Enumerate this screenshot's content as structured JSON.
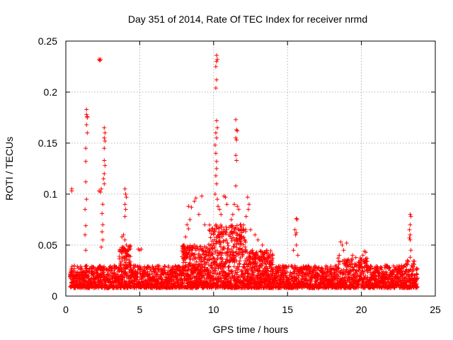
{
  "chart_data": {
    "type": "scatter",
    "title": "Day 351 of 2014, Rate Of TEC Index for receiver nrmd",
    "xlabel": "GPS time / hours",
    "ylabel": "ROTI / TECUs",
    "xlim": [
      0,
      25
    ],
    "ylim": [
      0,
      0.25
    ],
    "x_ticks": [
      0,
      5,
      10,
      15,
      20,
      25
    ],
    "y_ticks": [
      0,
      0.05,
      0.1,
      0.15,
      0.2,
      0.25
    ],
    "x_tick_labels": [
      "0",
      "5",
      "10",
      "15",
      "20",
      "25"
    ],
    "y_tick_labels": [
      "0",
      "0.05",
      "0.1",
      "0.15",
      "0.2",
      "0.25"
    ],
    "grid": true,
    "series": [
      {
        "name": "ROTI",
        "color": "#ff0000",
        "marker": "plus",
        "points": [
          [
            0.4,
            0.105
          ],
          [
            0.4,
            0.103
          ],
          [
            0.5,
            0.025
          ],
          [
            0.6,
            0.02
          ],
          [
            1.4,
            0.183
          ],
          [
            1.4,
            0.178
          ],
          [
            1.45,
            0.176
          ],
          [
            1.45,
            0.175
          ],
          [
            1.4,
            0.168
          ],
          [
            1.45,
            0.16
          ],
          [
            1.35,
            0.145
          ],
          [
            1.35,
            0.132
          ],
          [
            1.35,
            0.112
          ],
          [
            1.4,
            0.095
          ],
          [
            1.3,
            0.085
          ],
          [
            1.35,
            0.069
          ],
          [
            1.3,
            0.06
          ],
          [
            1.35,
            0.045
          ],
          [
            2.25,
            0.232
          ],
          [
            2.3,
            0.231
          ],
          [
            2.35,
            0.232
          ],
          [
            2.25,
            0.103
          ],
          [
            2.35,
            0.102
          ],
          [
            2.4,
            0.105
          ],
          [
            2.6,
            0.165
          ],
          [
            2.65,
            0.16
          ],
          [
            2.6,
            0.155
          ],
          [
            2.65,
            0.152
          ],
          [
            2.6,
            0.145
          ],
          [
            2.6,
            0.133
          ],
          [
            2.65,
            0.128
          ],
          [
            2.6,
            0.12
          ],
          [
            2.55,
            0.115
          ],
          [
            2.6,
            0.11
          ],
          [
            2.5,
            0.09
          ],
          [
            2.45,
            0.081
          ],
          [
            2.5,
            0.07
          ],
          [
            2.45,
            0.063
          ],
          [
            2.5,
            0.055
          ],
          [
            2.4,
            0.048
          ],
          [
            4.0,
            0.105
          ],
          [
            4.05,
            0.1
          ],
          [
            4.1,
            0.097
          ],
          [
            4.0,
            0.09
          ],
          [
            4.05,
            0.085
          ],
          [
            4.0,
            0.078
          ],
          [
            3.9,
            0.06
          ],
          [
            4.0,
            0.055
          ],
          [
            4.1,
            0.05
          ],
          [
            3.8,
            0.058
          ],
          [
            4.2,
            0.045
          ],
          [
            4.15,
            0.04
          ],
          [
            4.9,
            0.046
          ],
          [
            5.0,
            0.045
          ],
          [
            5.1,
            0.046
          ],
          [
            8.3,
            0.088
          ],
          [
            8.5,
            0.087
          ],
          [
            8.4,
            0.075
          ],
          [
            8.2,
            0.07
          ],
          [
            8.3,
            0.066
          ],
          [
            8.1,
            0.058
          ],
          [
            8.0,
            0.05
          ],
          [
            8.7,
            0.093
          ],
          [
            8.8,
            0.096
          ],
          [
            9.2,
            0.098
          ],
          [
            9.0,
            0.08
          ],
          [
            9.4,
            0.07
          ],
          [
            10.2,
            0.236
          ],
          [
            10.25,
            0.232
          ],
          [
            10.2,
            0.23
          ],
          [
            10.15,
            0.225
          ],
          [
            10.2,
            0.212
          ],
          [
            10.15,
            0.204
          ],
          [
            10.2,
            0.172
          ],
          [
            10.25,
            0.165
          ],
          [
            10.15,
            0.16
          ],
          [
            10.2,
            0.155
          ],
          [
            10.1,
            0.148
          ],
          [
            10.15,
            0.14
          ],
          [
            10.2,
            0.132
          ],
          [
            10.2,
            0.125
          ],
          [
            10.15,
            0.118
          ],
          [
            10.2,
            0.11
          ],
          [
            10.1,
            0.1
          ],
          [
            10.25,
            0.095
          ],
          [
            10.3,
            0.088
          ],
          [
            10.4,
            0.085
          ],
          [
            10.5,
            0.08
          ],
          [
            10.7,
            0.098
          ],
          [
            10.8,
            0.097
          ],
          [
            10.9,
            0.09
          ],
          [
            11.5,
            0.173
          ],
          [
            11.55,
            0.163
          ],
          [
            11.6,
            0.162
          ],
          [
            11.5,
            0.155
          ],
          [
            11.55,
            0.153
          ],
          [
            11.5,
            0.138
          ],
          [
            11.55,
            0.133
          ],
          [
            11.5,
            0.108
          ],
          [
            11.4,
            0.09
          ],
          [
            11.6,
            0.088
          ],
          [
            11.7,
            0.085
          ],
          [
            11.3,
            0.08
          ],
          [
            11.2,
            0.075
          ],
          [
            11.8,
            0.07
          ],
          [
            12.3,
            0.097
          ],
          [
            12.4,
            0.09
          ],
          [
            12.35,
            0.085
          ],
          [
            12.2,
            0.078
          ],
          [
            12.5,
            0.065
          ],
          [
            12.8,
            0.06
          ],
          [
            13.0,
            0.055
          ],
          [
            13.3,
            0.05
          ],
          [
            13.6,
            0.045
          ],
          [
            14.0,
            0.04
          ],
          [
            15.6,
            0.076
          ],
          [
            15.65,
            0.075
          ],
          [
            15.5,
            0.065
          ],
          [
            15.6,
            0.062
          ],
          [
            15.55,
            0.06
          ],
          [
            15.6,
            0.05
          ],
          [
            15.4,
            0.045
          ],
          [
            15.7,
            0.04
          ],
          [
            18.6,
            0.053
          ],
          [
            18.7,
            0.05
          ],
          [
            18.8,
            0.045
          ],
          [
            19.0,
            0.052
          ],
          [
            18.5,
            0.04
          ],
          [
            20.2,
            0.044
          ],
          [
            20.3,
            0.043
          ],
          [
            20.1,
            0.04
          ],
          [
            19.4,
            0.04
          ],
          [
            23.3,
            0.08
          ],
          [
            23.35,
            0.078
          ],
          [
            23.3,
            0.07
          ],
          [
            23.25,
            0.065
          ],
          [
            23.3,
            0.06
          ],
          [
            23.25,
            0.057
          ],
          [
            23.3,
            0.055
          ],
          [
            23.35,
            0.045
          ],
          [
            23.3,
            0.038
          ]
        ]
      }
    ],
    "dense_band": {
      "note": "Dense cluster of ROTI values between approximately 0.01 and 0.03 TECU across 0.3–23.8 h, rising to about 0.07 between 9.8 and 12 h",
      "x_range": [
        0.3,
        23.8
      ],
      "baseline_low": 0.008,
      "baseline_high": 0.03,
      "enhanced_segments": [
        {
          "x_range": [
            3.6,
            4.4
          ],
          "high": 0.05
        },
        {
          "x_range": [
            7.8,
            9.6
          ],
          "high": 0.05
        },
        {
          "x_range": [
            9.6,
            12.2
          ],
          "high": 0.07
        },
        {
          "x_range": [
            12.2,
            14.0
          ],
          "high": 0.045
        },
        {
          "x_range": [
            18.4,
            20.4
          ],
          "high": 0.038
        },
        {
          "x_range": [
            23.0,
            23.6
          ],
          "high": 0.035
        }
      ]
    }
  }
}
